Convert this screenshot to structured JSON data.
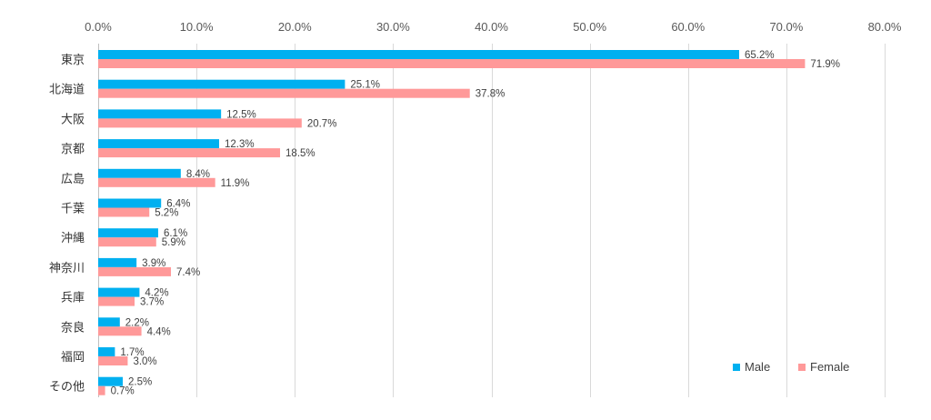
{
  "chart_data": {
    "type": "bar",
    "orientation": "horizontal",
    "categories": [
      "東京",
      "北海道",
      "大阪",
      "京都",
      "広島",
      "千葉",
      "沖縄",
      "神奈川",
      "兵庫",
      "奈良",
      "福岡",
      "その他"
    ],
    "series": [
      {
        "name": "Male",
        "color": "#00b0f0",
        "values": [
          65.2,
          25.1,
          12.5,
          12.3,
          8.4,
          6.4,
          6.1,
          3.9,
          4.2,
          2.2,
          1.7,
          2.5
        ],
        "labels": [
          "65.2%",
          "25.1%",
          "12.5%",
          "12.3%",
          "8.4%",
          "6.4%",
          "6.1%",
          "3.9%",
          "4.2%",
          "2.2%",
          "1.7%",
          "2.5%"
        ]
      },
      {
        "name": "Female",
        "color": "#ff9999",
        "values": [
          71.9,
          37.8,
          20.7,
          18.5,
          11.9,
          5.2,
          5.9,
          7.4,
          3.7,
          4.4,
          3.0,
          0.7
        ],
        "labels": [
          "71.9%",
          "37.8%",
          "20.7%",
          "18.5%",
          "11.9%",
          "5.2%",
          "5.9%",
          "7.4%",
          "3.7%",
          "4.4%",
          "3.0%",
          "0.7%"
        ]
      }
    ],
    "xlim": [
      0,
      80
    ],
    "xticks": [
      0,
      10,
      20,
      30,
      40,
      50,
      60,
      70,
      80
    ],
    "xtick_labels": [
      "0.0%",
      "10.0%",
      "20.0%",
      "30.0%",
      "40.0%",
      "50.0%",
      "60.0%",
      "70.0%",
      "80.0%"
    ],
    "x_axis_position": "top",
    "grid": true,
    "legend": "bottom-right",
    "title": "",
    "xlabel": "",
    "ylabel": ""
  }
}
